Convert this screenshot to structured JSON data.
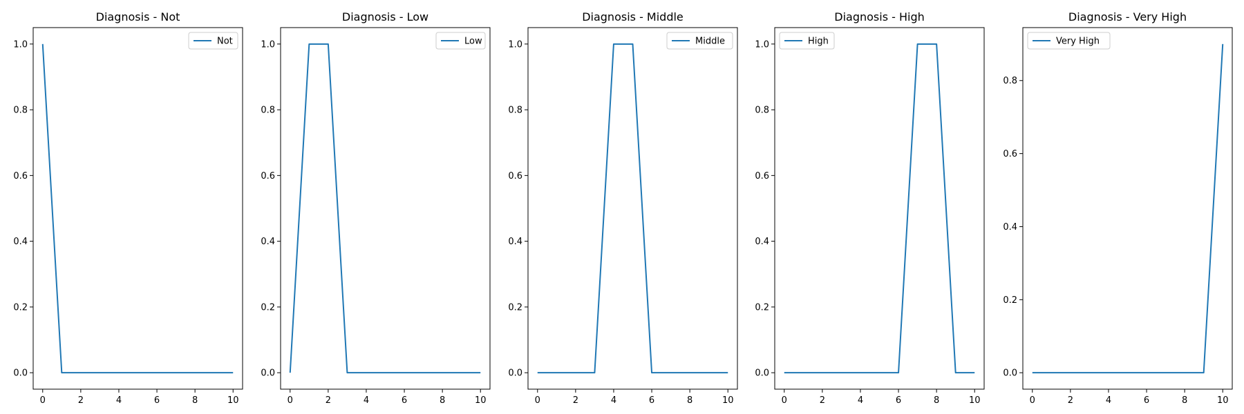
{
  "chart_data": [
    {
      "type": "line",
      "title": "Diagnosis - Not",
      "xlabel": "",
      "ylabel": "",
      "xlim": [
        -0.5,
        10.5
      ],
      "ylim": [
        -0.05,
        1.05
      ],
      "xticks": [
        0,
        2,
        4,
        6,
        8,
        10
      ],
      "yticks": [
        0.0,
        0.2,
        0.4,
        0.6,
        0.8,
        1.0
      ],
      "legend": "top-right",
      "grid": false,
      "series": [
        {
          "name": "Not",
          "color": "#1f77b4",
          "x": [
            0,
            1,
            2,
            3,
            4,
            5,
            6,
            7,
            8,
            9,
            10
          ],
          "y": [
            1,
            0,
            0,
            0,
            0,
            0,
            0,
            0,
            0,
            0,
            0
          ]
        }
      ]
    },
    {
      "type": "line",
      "title": "Diagnosis - Low",
      "xlabel": "",
      "ylabel": "",
      "xlim": [
        -0.5,
        10.5
      ],
      "ylim": [
        -0.05,
        1.05
      ],
      "xticks": [
        0,
        2,
        4,
        6,
        8,
        10
      ],
      "yticks": [
        0.0,
        0.2,
        0.4,
        0.6,
        0.8,
        1.0
      ],
      "legend": "top-right",
      "grid": false,
      "series": [
        {
          "name": "Low",
          "color": "#1f77b4",
          "x": [
            0,
            1,
            2,
            3,
            4,
            5,
            6,
            7,
            8,
            9,
            10
          ],
          "y": [
            0,
            1,
            1,
            0,
            0,
            0,
            0,
            0,
            0,
            0,
            0
          ]
        }
      ]
    },
    {
      "type": "line",
      "title": "Diagnosis - Middle",
      "xlabel": "",
      "ylabel": "",
      "xlim": [
        -0.5,
        10.5
      ],
      "ylim": [
        -0.05,
        1.05
      ],
      "xticks": [
        0,
        2,
        4,
        6,
        8,
        10
      ],
      "yticks": [
        0.0,
        0.2,
        0.4,
        0.6,
        0.8,
        1.0
      ],
      "legend": "top-right",
      "grid": false,
      "series": [
        {
          "name": "Middle",
          "color": "#1f77b4",
          "x": [
            0,
            1,
            2,
            3,
            4,
            5,
            6,
            7,
            8,
            9,
            10
          ],
          "y": [
            0,
            0,
            0,
            0,
            1,
            1,
            0,
            0,
            0,
            0,
            0
          ]
        }
      ]
    },
    {
      "type": "line",
      "title": "Diagnosis - High",
      "xlabel": "",
      "ylabel": "",
      "xlim": [
        -0.5,
        10.5
      ],
      "ylim": [
        -0.05,
        1.05
      ],
      "xticks": [
        0,
        2,
        4,
        6,
        8,
        10
      ],
      "yticks": [
        0.0,
        0.2,
        0.4,
        0.6,
        0.8,
        1.0
      ],
      "legend": "top-left",
      "grid": false,
      "series": [
        {
          "name": "High",
          "color": "#1f77b4",
          "x": [
            0,
            1,
            2,
            3,
            4,
            5,
            6,
            7,
            8,
            9,
            10
          ],
          "y": [
            0,
            0,
            0,
            0,
            0,
            0,
            0,
            1,
            1,
            0,
            0
          ]
        }
      ]
    },
    {
      "type": "line",
      "title": "Diagnosis - Very High",
      "xlabel": "",
      "ylabel": "",
      "xlim": [
        -0.5,
        10.5
      ],
      "ylim": [
        -0.045,
        0.945
      ],
      "xticks": [
        0,
        2,
        4,
        6,
        8,
        10
      ],
      "yticks": [
        0.0,
        0.2,
        0.4,
        0.6,
        0.8
      ],
      "legend": "top-left",
      "grid": false,
      "series": [
        {
          "name": "Very High",
          "color": "#1f77b4",
          "x": [
            0,
            1,
            2,
            3,
            4,
            5,
            6,
            7,
            8,
            9,
            10
          ],
          "y": [
            0,
            0,
            0,
            0,
            0,
            0,
            0,
            0,
            0,
            0,
            0.9
          ]
        }
      ]
    }
  ]
}
